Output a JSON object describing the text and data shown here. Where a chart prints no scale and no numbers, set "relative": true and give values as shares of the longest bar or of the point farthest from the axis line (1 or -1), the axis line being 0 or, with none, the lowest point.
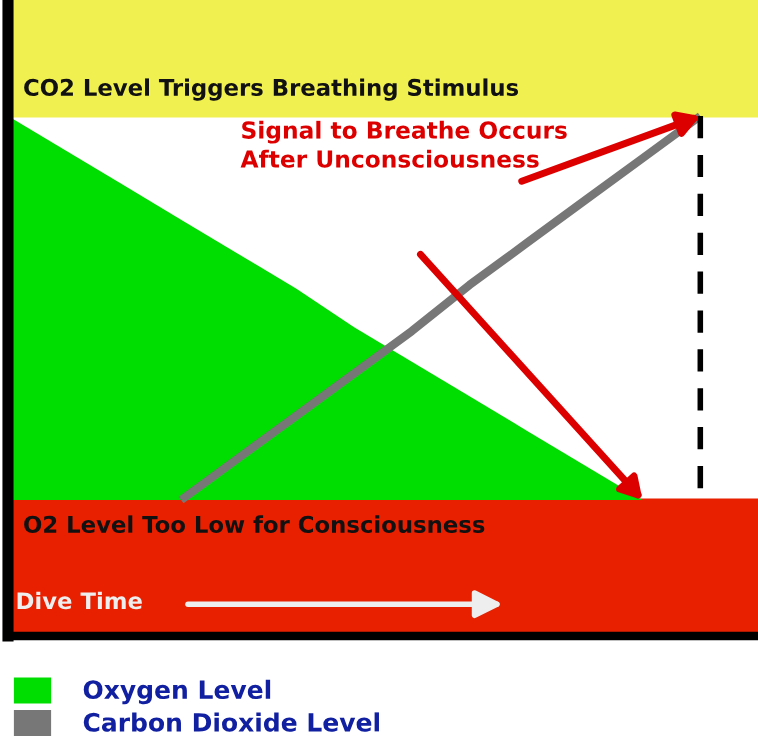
{
  "chart_data": {
    "type": "area",
    "relative": true,
    "xlabel": "Dive Time",
    "legend": "bottom",
    "categories": [
      null,
      null,
      null,
      null,
      null,
      null,
      null,
      null,
      null,
      null,
      null,
      null,
      null
    ],
    "series": [
      {
        "name": "Oxygen Level",
        "color": "#00dd00",
        "values": [
          1,
          0.91,
          0.82,
          0.73,
          0.64,
          0.55,
          0.45,
          0.36,
          0.27,
          0.18,
          0.09,
          0,
          null
        ]
      },
      {
        "name": "Carbon Dioxide Level",
        "color": "#777777",
        "type": "line",
        "values": [
          null,
          null,
          null,
          0,
          0.11,
          0.22,
          0.33,
          0.44,
          0.56,
          0.67,
          0.78,
          0.89,
          1
        ]
      }
    ],
    "ref_lines": [
      {
        "axis": "y",
        "value": 1,
        "label": "CO2 Level Triggers Breathing Stimulus",
        "color": "#f0f050"
      },
      {
        "axis": "y",
        "value": 0,
        "label": "O2 Level Too Low for Consciousness",
        "color": "#e82000"
      }
    ],
    "annotations": [
      "Signal to Breathe Occurs After Unconsciousness"
    ]
  }
}
